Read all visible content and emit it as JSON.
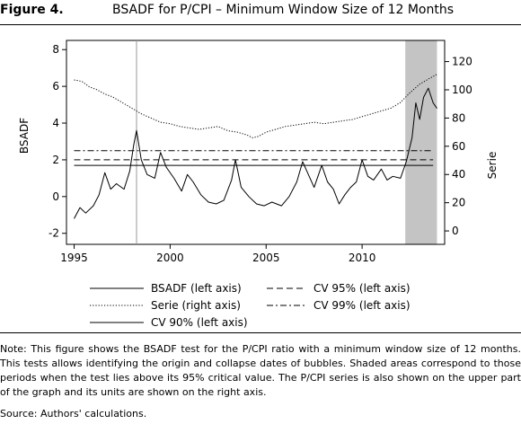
{
  "figure": {
    "label": "Figure 4.",
    "title": "BSADF for P/CPI – Minimum Window Size of 12 Months"
  },
  "chart_data": {
    "type": "line",
    "title": "BSADF for P/CPI – Minimum Window Size of 12 Months",
    "ylabel_left": "BSADF",
    "ylabel_right": "Serie",
    "xlim": [
      1994.6,
      2014.3
    ],
    "ylim_left": [
      -2.6,
      8.5
    ],
    "ylim_right": [
      -9.5,
      135
    ],
    "x_ticks": [
      1995,
      2000,
      2005,
      2010
    ],
    "y_ticks_left": [
      -2,
      0,
      2,
      4,
      6,
      8
    ],
    "y_ticks_right": [
      0,
      20,
      40,
      60,
      80,
      100,
      120
    ],
    "grid": false,
    "legend_position": "bottom",
    "vertical_marker_x": 1998.25,
    "shaded_regions": [
      [
        2012.25,
        2013.9
      ]
    ],
    "series": [
      {
        "name": "BSADF (left axis)",
        "axis": "left",
        "style": "solid",
        "points": [
          [
            1995.0,
            -1.2
          ],
          [
            1995.3,
            -0.6
          ],
          [
            1995.6,
            -0.9
          ],
          [
            1996.0,
            -0.5
          ],
          [
            1996.3,
            0.1
          ],
          [
            1996.6,
            1.3
          ],
          [
            1996.9,
            0.4
          ],
          [
            1997.2,
            0.7
          ],
          [
            1997.6,
            0.4
          ],
          [
            1997.9,
            1.4
          ],
          [
            1998.1,
            2.8
          ],
          [
            1998.25,
            3.6
          ],
          [
            1998.5,
            2.0
          ],
          [
            1998.8,
            1.2
          ],
          [
            1999.2,
            1.0
          ],
          [
            1999.5,
            2.4
          ],
          [
            1999.8,
            1.6
          ],
          [
            2000.2,
            1.0
          ],
          [
            2000.6,
            0.3
          ],
          [
            2000.9,
            1.2
          ],
          [
            2001.2,
            0.8
          ],
          [
            2001.6,
            0.1
          ],
          [
            2002.0,
            -0.3
          ],
          [
            2002.4,
            -0.4
          ],
          [
            2002.8,
            -0.2
          ],
          [
            2003.2,
            0.9
          ],
          [
            2003.4,
            2.0
          ],
          [
            2003.7,
            0.5
          ],
          [
            2004.1,
            0.0
          ],
          [
            2004.5,
            -0.4
          ],
          [
            2004.9,
            -0.5
          ],
          [
            2005.3,
            -0.3
          ],
          [
            2005.8,
            -0.5
          ],
          [
            2006.2,
            0.0
          ],
          [
            2006.6,
            0.8
          ],
          [
            2006.9,
            1.9
          ],
          [
            2007.2,
            1.2
          ],
          [
            2007.5,
            0.5
          ],
          [
            2007.9,
            1.7
          ],
          [
            2008.2,
            0.8
          ],
          [
            2008.5,
            0.4
          ],
          [
            2008.8,
            -0.4
          ],
          [
            2009.1,
            0.1
          ],
          [
            2009.4,
            0.5
          ],
          [
            2009.7,
            0.8
          ],
          [
            2010.0,
            2.0
          ],
          [
            2010.3,
            1.1
          ],
          [
            2010.6,
            0.9
          ],
          [
            2011.0,
            1.5
          ],
          [
            2011.3,
            0.9
          ],
          [
            2011.6,
            1.1
          ],
          [
            2012.0,
            1.0
          ],
          [
            2012.3,
            1.9
          ],
          [
            2012.6,
            3.2
          ],
          [
            2012.8,
            5.1
          ],
          [
            2013.0,
            4.2
          ],
          [
            2013.2,
            5.4
          ],
          [
            2013.45,
            5.9
          ],
          [
            2013.7,
            5.1
          ],
          [
            2013.9,
            4.8
          ]
        ]
      },
      {
        "name": "Serie (right axis)",
        "axis": "right",
        "style": "dotted",
        "points": [
          [
            1995.0,
            107
          ],
          [
            1995.4,
            106
          ],
          [
            1995.8,
            102
          ],
          [
            1996.2,
            100
          ],
          [
            1996.6,
            97
          ],
          [
            1997.0,
            95
          ],
          [
            1997.5,
            91
          ],
          [
            1998.0,
            87
          ],
          [
            1998.5,
            83
          ],
          [
            1999.0,
            80
          ],
          [
            1999.5,
            77
          ],
          [
            2000.0,
            76
          ],
          [
            2000.5,
            74
          ],
          [
            2001.0,
            73
          ],
          [
            2001.5,
            72
          ],
          [
            2002.0,
            73
          ],
          [
            2002.5,
            74
          ],
          [
            2003.0,
            71
          ],
          [
            2003.5,
            70
          ],
          [
            2004.0,
            68
          ],
          [
            2004.3,
            66
          ],
          [
            2004.6,
            67
          ],
          [
            2005.0,
            70
          ],
          [
            2005.5,
            72
          ],
          [
            2006.0,
            74
          ],
          [
            2006.5,
            75
          ],
          [
            2007.0,
            76
          ],
          [
            2007.5,
            77
          ],
          [
            2008.0,
            76
          ],
          [
            2008.5,
            77
          ],
          [
            2009.0,
            78
          ],
          [
            2009.5,
            79
          ],
          [
            2010.0,
            81
          ],
          [
            2010.5,
            83
          ],
          [
            2011.0,
            85
          ],
          [
            2011.5,
            87
          ],
          [
            2012.0,
            91
          ],
          [
            2012.5,
            98
          ],
          [
            2013.0,
            104
          ],
          [
            2013.5,
            108
          ],
          [
            2013.9,
            111
          ]
        ]
      },
      {
        "name": "CV 90% (left axis)",
        "axis": "left",
        "style": "solid",
        "points": [
          [
            1995.0,
            1.7
          ],
          [
            2013.7,
            1.7
          ]
        ]
      },
      {
        "name": "CV 95% (left axis)",
        "axis": "left",
        "style": "dashed",
        "points": [
          [
            1995.0,
            2.0
          ],
          [
            2013.7,
            2.0
          ]
        ]
      },
      {
        "name": "CV 99% (left axis)",
        "axis": "left",
        "style": "dashdot",
        "points": [
          [
            1995.0,
            2.5
          ],
          [
            2013.7,
            2.5
          ]
        ]
      }
    ]
  },
  "legend": [
    {
      "label": "BSADF (left axis)",
      "style": "solid"
    },
    {
      "label": "Serie (right axis)",
      "style": "dotted"
    },
    {
      "label": "CV 90% (left axis)",
      "style": "solid"
    },
    {
      "label": "CV 95% (left axis)",
      "style": "dashed"
    },
    {
      "label": "CV 99% (left axis)",
      "style": "dashdot"
    }
  ],
  "note": "Note: This figure shows the BSADF test for the P/CPI ratio with a minimum window size of 12 months. This tests allows identifying the origin and collapse dates of bubbles. Shaded areas correspond to those periods when the test lies above its 95% critical value. The P/CPI series is also shown on the upper part of the graph and its units are shown on the right axis.",
  "source": "Source: Authors' calculations."
}
